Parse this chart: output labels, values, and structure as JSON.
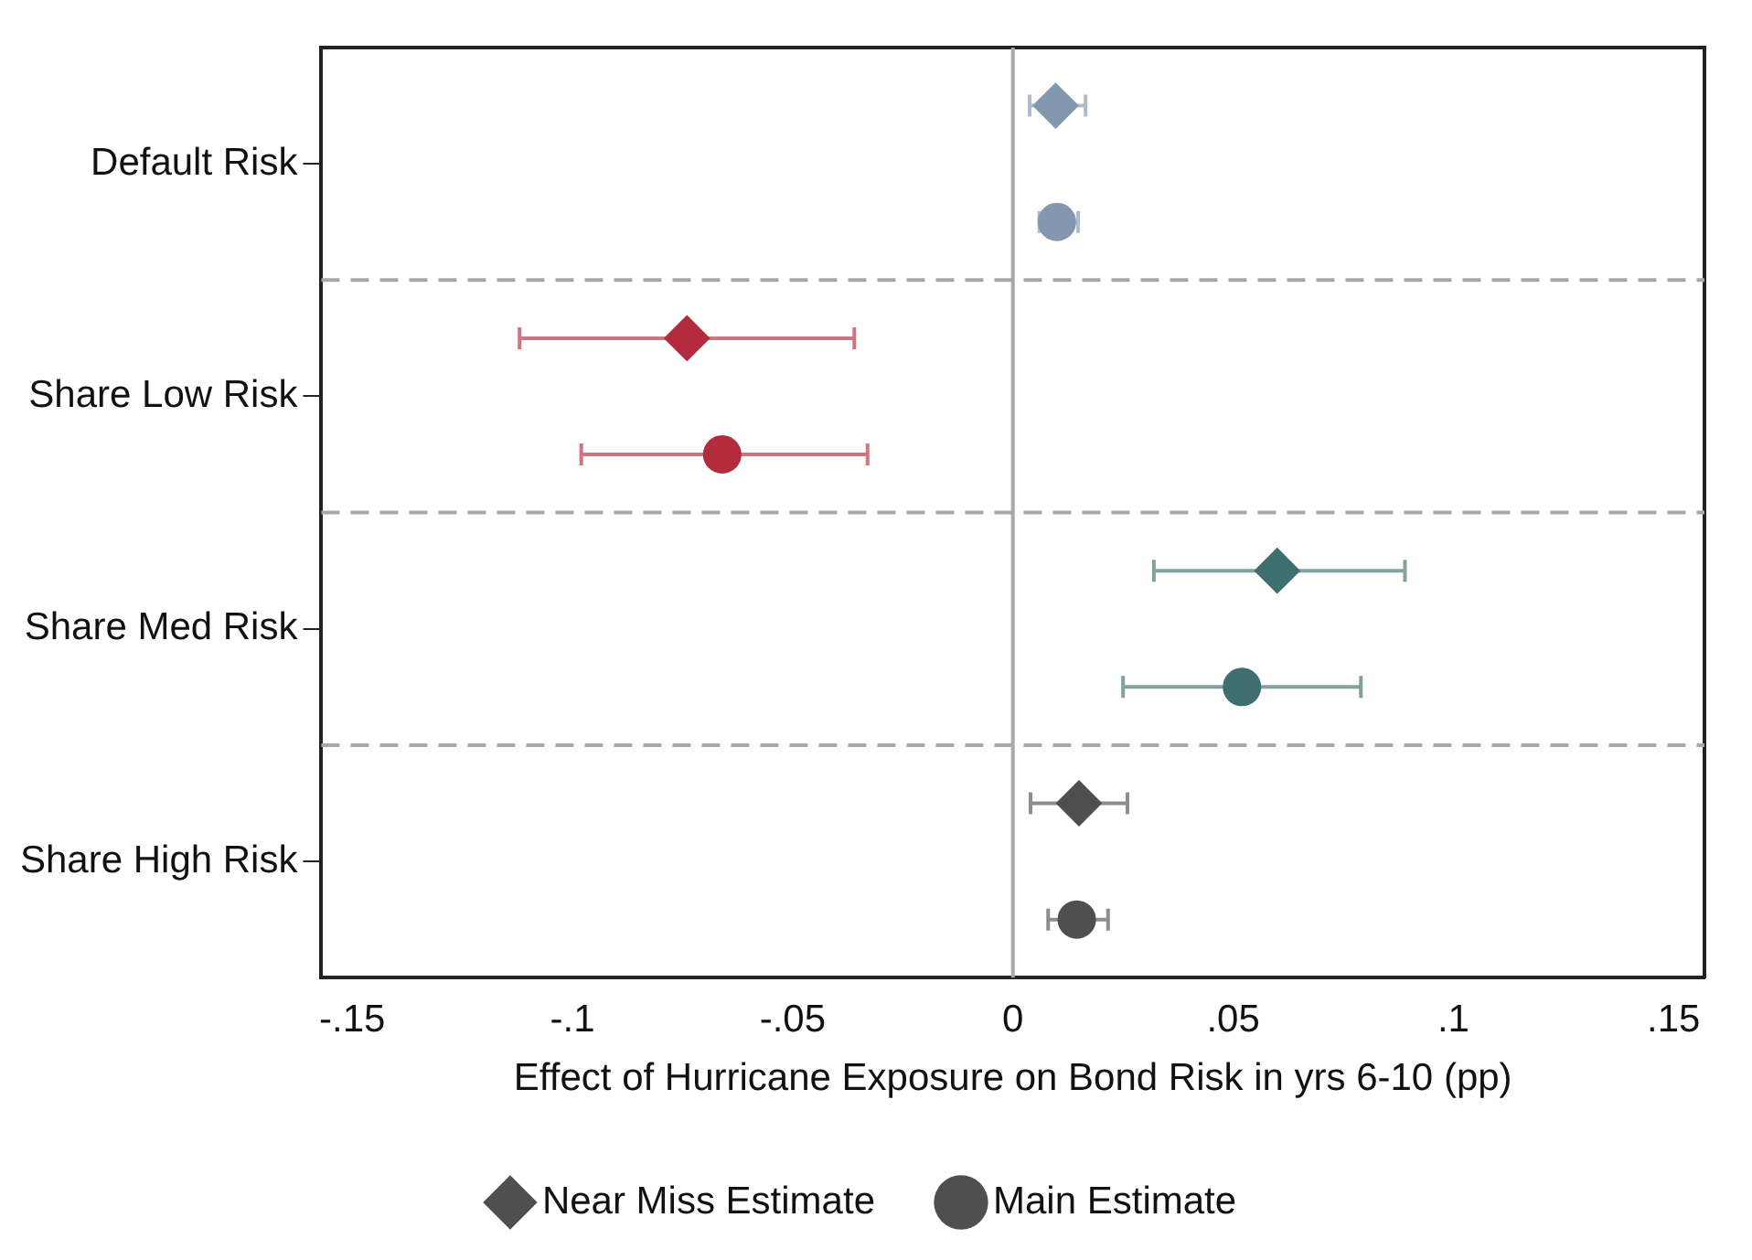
{
  "chart_data": {
    "type": "scatter",
    "orientation": "horizontal",
    "xlabel": "Effect of Hurricane Exposure on Bond Risk in yrs 6-10 (pp)",
    "categories": [
      "Default Risk",
      "Share Low Risk",
      "Share Med Risk",
      "Share High Risk"
    ],
    "xlim": [
      -0.157,
      0.157
    ],
    "xticks": [
      {
        "value": -0.15,
        "label": "-.15"
      },
      {
        "value": -0.1,
        "label": "-.1"
      },
      {
        "value": -0.05,
        "label": "-.05"
      },
      {
        "value": 0,
        "label": "0"
      },
      {
        "value": 0.05,
        "label": ".05"
      },
      {
        "value": 0.1,
        "label": ".1"
      },
      {
        "value": 0.15,
        "label": ".15"
      }
    ],
    "grid": "y",
    "legend": "bottom",
    "ref_lines": [
      {
        "axis": "x",
        "value": 0,
        "color": "#a8a8a8",
        "line_style": "solid"
      }
    ],
    "series": [
      {
        "name": "Near Miss Estimate",
        "marker": "diamond",
        "color": "#4f4f4f",
        "colors": [
          "#8397b0",
          "#b22c3e",
          "#3f6e6e",
          "#4f4f4f"
        ],
        "values": [
          0.0097,
          -0.074,
          0.06,
          0.015
        ],
        "errors": [
          [
            0.0038,
            0.0165
          ],
          [
            -0.112,
            -0.036
          ],
          [
            0.032,
            0.089
          ],
          [
            0.004,
            0.026
          ]
        ]
      },
      {
        "name": "Main Estimate",
        "marker": "circle",
        "color": "#4f4f4f",
        "colors": [
          "#8397b0",
          "#b22c3e",
          "#3f6e6e",
          "#4f4f4f"
        ],
        "values": [
          0.01,
          -0.066,
          0.052,
          0.0145
        ],
        "errors": [
          [
            0.006,
            0.0148
          ],
          [
            -0.098,
            -0.033
          ],
          [
            0.025,
            0.079
          ],
          [
            0.008,
            0.0216
          ]
        ]
      }
    ]
  }
}
